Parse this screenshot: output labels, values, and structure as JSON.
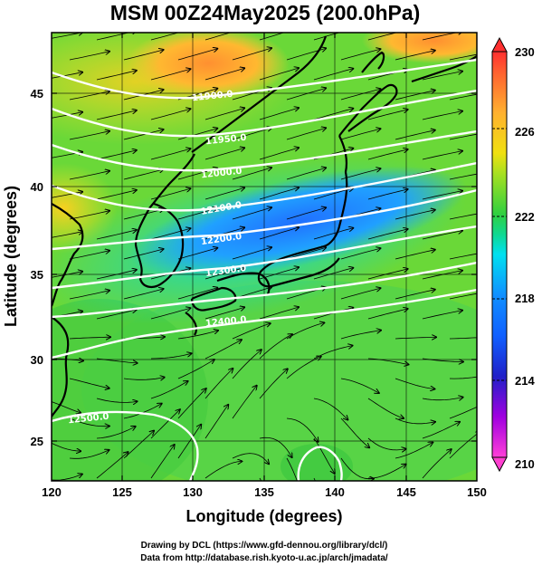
{
  "title": "MSM 00Z24May2025 (200.0hPa)",
  "x_axis": {
    "label": "Longitude (degrees)",
    "min": 120,
    "max": 150,
    "ticks": [
      "120",
      "125",
      "130",
      "135",
      "140",
      "145",
      "150"
    ]
  },
  "y_axis": {
    "label": "Latitude  (degrees)",
    "min": 22.5,
    "max": 47.6,
    "ticks": [
      "25",
      "30",
      "35",
      "40",
      "45"
    ]
  },
  "colorbar": {
    "min": 210,
    "max": 230,
    "ticks": [
      "210",
      "214",
      "218",
      "222",
      "226",
      "230"
    ],
    "colors": [
      "#ff3fd8",
      "#a000e0",
      "#2020c8",
      "#1090ff",
      "#00e0f0",
      "#10d890",
      "#30d040",
      "#a8e020",
      "#f0e010",
      "#ff9030",
      "#ff3030"
    ]
  },
  "contours": [
    {
      "label": "11900.0",
      "lon": 132.0,
      "lat": 46.2
    },
    {
      "label": "11950.0",
      "lon": 131.8,
      "lat": 43.7
    },
    {
      "label": "12000.0",
      "lon": 131.5,
      "lat": 41.5
    },
    {
      "label": "12100.0",
      "lon": 131.0,
      "lat": 39.0
    },
    {
      "label": "12200.0",
      "lon": 131.0,
      "lat": 36.8
    },
    {
      "label": "12300.0",
      "lon": 131.0,
      "lat": 34.7
    },
    {
      "label": "12400.0",
      "lon": 131.0,
      "lat": 31.8
    },
    {
      "label": "12500.0",
      "lon": 121.5,
      "lat": 26.8
    }
  ],
  "credits": {
    "line1": "Drawing by DCL (https://www.gfd-dennou.org/library/dcl/)",
    "line2": "Data from http://database.rish.kyoto-u.ac.jp/arch/jmadata/"
  }
}
